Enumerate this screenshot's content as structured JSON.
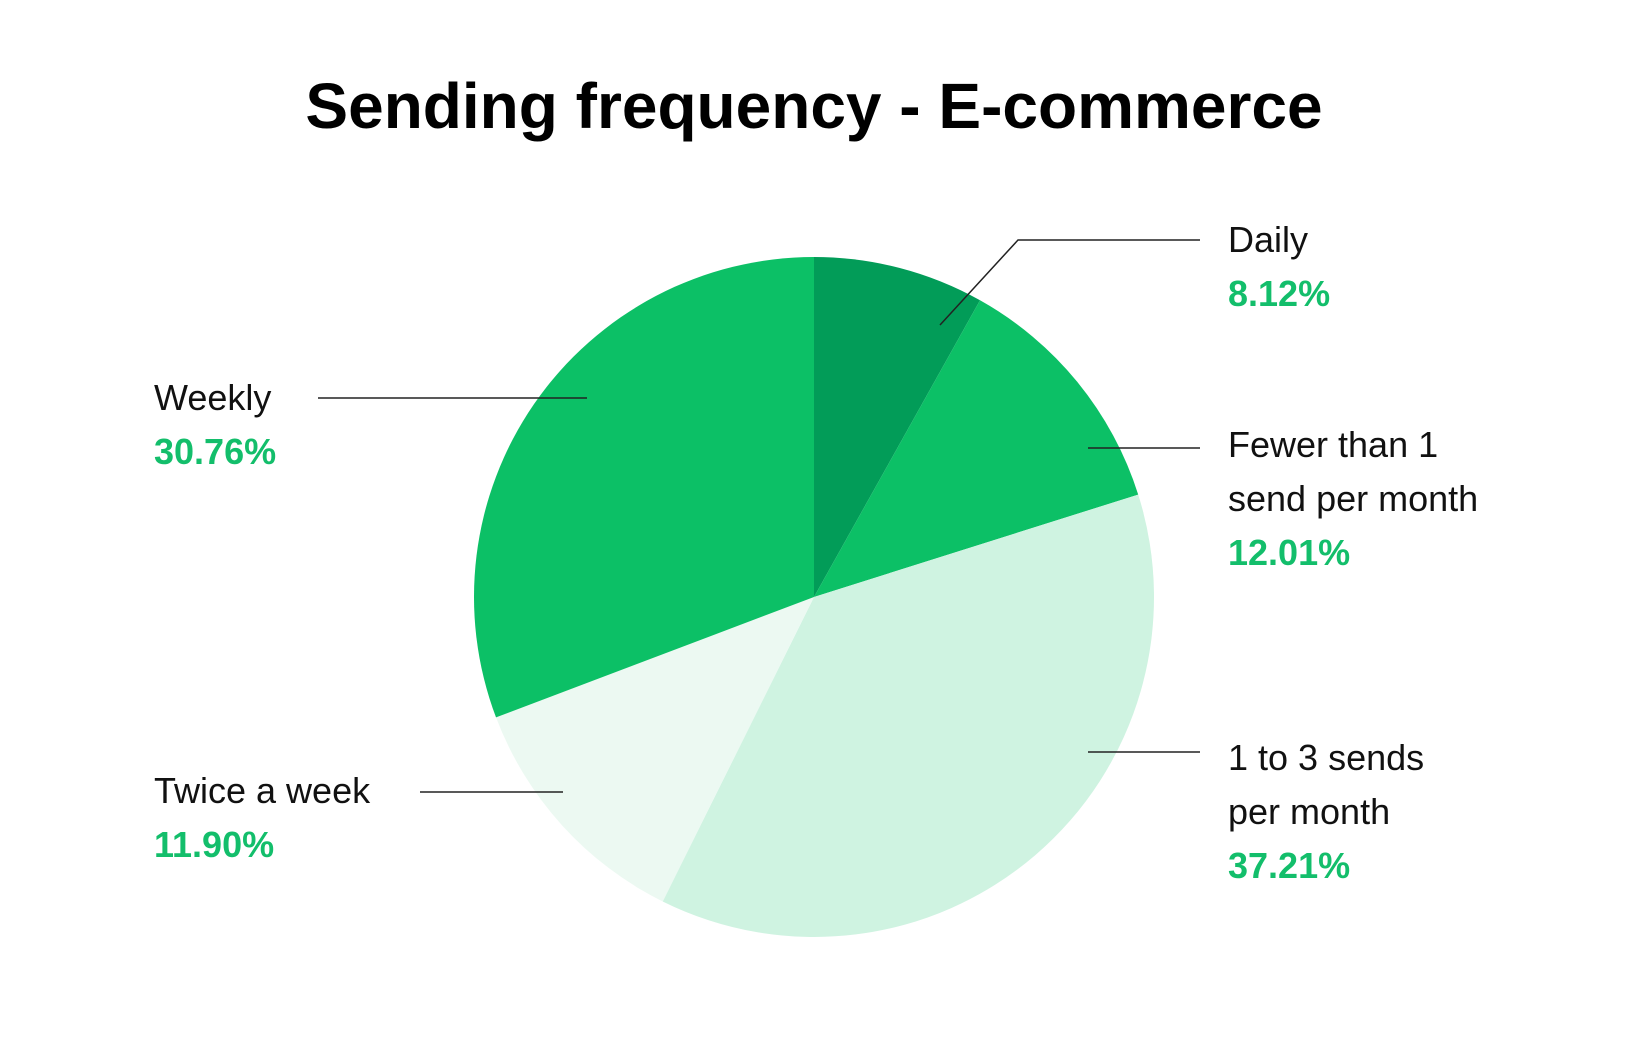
{
  "chart_data": {
    "type": "pie",
    "title": "Sending frequency -  E-commerce",
    "start_angle_deg": 0,
    "direction": "clockwise",
    "slices": [
      {
        "label": [
          "Daily"
        ],
        "value": 8.12,
        "value_label": "8.12%",
        "color": "#029c58"
      },
      {
        "label": [
          "Fewer than 1",
          "send per month"
        ],
        "value": 12.01,
        "value_label": "12.01%",
        "color": "#0cc066"
      },
      {
        "label": [
          "1 to 3 sends",
          "per month"
        ],
        "value": 37.21,
        "value_label": "37.21%",
        "color": "#cff3e1"
      },
      {
        "label": [
          "Twice a week"
        ],
        "value": 11.9,
        "value_label": "11.90%",
        "color": "#ecf9f2"
      },
      {
        "label": [
          "Weekly"
        ],
        "value": 30.76,
        "value_label": "30.76%",
        "color": "#0cc066"
      }
    ],
    "value_text_color": "#13be6b"
  }
}
